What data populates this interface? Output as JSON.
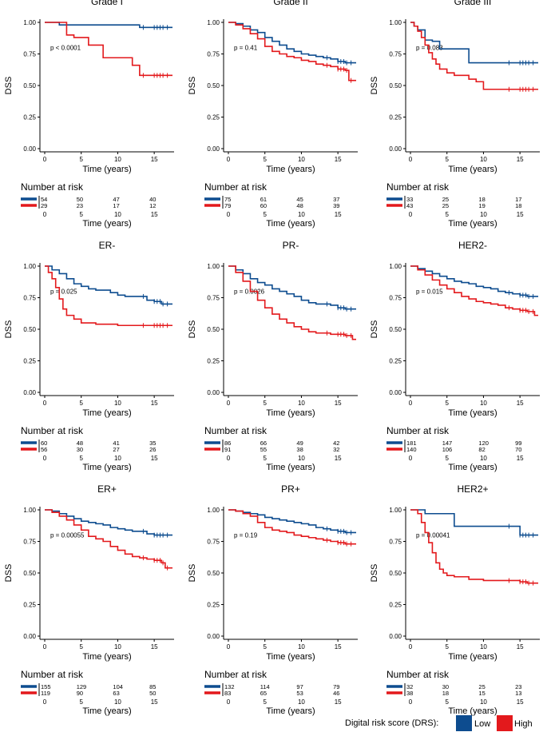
{
  "colors": {
    "low": "#0d4c8f",
    "high": "#e3191c"
  },
  "common": {
    "y_axis_label": "DSS",
    "x_axis_label": "Time (years)",
    "risk_table_title": "Number at risk",
    "y_ticks": [
      "0.00",
      "0.25",
      "0.50",
      "0.75",
      "1.00"
    ],
    "x_ticks": [
      "0",
      "5",
      "10",
      "15"
    ]
  },
  "legend": {
    "title": "Digital risk score (DRS):",
    "low_label": "Low",
    "high_label": "High"
  },
  "chart_data": [
    {
      "type": "line",
      "title": "Grade I",
      "pvalue": "p < 0.0001",
      "xlim": [
        0,
        17.5
      ],
      "ylim": [
        0,
        1
      ],
      "series": [
        {
          "name": "Low",
          "x": [
            0,
            1,
            2,
            3,
            4,
            5,
            7,
            9,
            10,
            12,
            13,
            14,
            15,
            17.5
          ],
          "y": [
            1,
            1,
            0.98,
            0.98,
            0.98,
            0.98,
            0.98,
            0.98,
            0.98,
            0.98,
            0.96,
            0.96,
            0.96,
            0.96
          ]
        },
        {
          "name": "High",
          "x": [
            0,
            1.5,
            3,
            4,
            5,
            6,
            7,
            8,
            10.5,
            12,
            13,
            15,
            17.5
          ],
          "y": [
            1,
            1,
            0.9,
            0.88,
            0.88,
            0.82,
            0.82,
            0.72,
            0.72,
            0.66,
            0.58,
            0.58,
            0.58
          ]
        }
      ],
      "risk": {
        "low": [
          "54",
          "50",
          "47",
          "40"
        ],
        "high": [
          "29",
          "23",
          "17",
          "12"
        ]
      }
    },
    {
      "type": "line",
      "title": "Grade II",
      "pvalue": "p = 0.41",
      "xlim": [
        0,
        17.5
      ],
      "ylim": [
        0,
        1
      ],
      "series": [
        {
          "name": "Low",
          "x": [
            0,
            1,
            2,
            3,
            4,
            5,
            6,
            7,
            8,
            9,
            10,
            11,
            12,
            13,
            14,
            15,
            16,
            17.5
          ],
          "y": [
            1,
            0.99,
            0.97,
            0.94,
            0.92,
            0.88,
            0.85,
            0.82,
            0.79,
            0.77,
            0.75,
            0.74,
            0.73,
            0.72,
            0.71,
            0.69,
            0.68,
            0.68
          ]
        },
        {
          "name": "High",
          "x": [
            0,
            1,
            2,
            3,
            4,
            5,
            6,
            7,
            8,
            9,
            10,
            11,
            12,
            13,
            14,
            15,
            16,
            16.5,
            17.5
          ],
          "y": [
            1,
            0.98,
            0.95,
            0.91,
            0.87,
            0.81,
            0.77,
            0.75,
            0.73,
            0.72,
            0.7,
            0.69,
            0.67,
            0.66,
            0.65,
            0.63,
            0.62,
            0.54,
            0.54
          ]
        }
      ],
      "risk": {
        "low": [
          "75",
          "61",
          "45",
          "37"
        ],
        "high": [
          "79",
          "60",
          "48",
          "39"
        ]
      }
    },
    {
      "type": "line",
      "title": "Grade III",
      "pvalue": "p = 0.083",
      "xlim": [
        0,
        17.5
      ],
      "ylim": [
        0,
        1
      ],
      "series": [
        {
          "name": "Low",
          "x": [
            0,
            0.5,
            1,
            2,
            3,
            4,
            5,
            6,
            7,
            8,
            10,
            12,
            15,
            17.5
          ],
          "y": [
            1,
            0.97,
            0.94,
            0.86,
            0.85,
            0.79,
            0.79,
            0.79,
            0.79,
            0.68,
            0.68,
            0.68,
            0.68,
            0.68
          ]
        },
        {
          "name": "High",
          "x": [
            0,
            0.5,
            1,
            1.5,
            2,
            2.5,
            3,
            3.5,
            4,
            5,
            6,
            7,
            8,
            9,
            10,
            12,
            15,
            17.5
          ],
          "y": [
            1,
            0.97,
            0.93,
            0.88,
            0.82,
            0.76,
            0.71,
            0.67,
            0.63,
            0.6,
            0.58,
            0.58,
            0.55,
            0.53,
            0.47,
            0.47,
            0.47,
            0.47
          ]
        }
      ],
      "risk": {
        "low": [
          "33",
          "25",
          "18",
          "17"
        ],
        "high": [
          "43",
          "25",
          "19",
          "18"
        ]
      }
    },
    {
      "type": "line",
      "title": "ER-",
      "pvalue": "p = 0.025",
      "xlim": [
        0,
        17.5
      ],
      "ylim": [
        0,
        1
      ],
      "series": [
        {
          "name": "Low",
          "x": [
            0,
            1,
            2,
            3,
            4,
            5,
            6,
            7,
            8,
            9,
            10,
            11,
            12,
            13,
            14,
            15,
            16,
            17.5
          ],
          "y": [
            1,
            0.97,
            0.94,
            0.9,
            0.86,
            0.84,
            0.82,
            0.81,
            0.81,
            0.79,
            0.77,
            0.76,
            0.76,
            0.76,
            0.73,
            0.72,
            0.7,
            0.7
          ]
        },
        {
          "name": "High",
          "x": [
            0,
            0.5,
            1,
            1.5,
            2,
            2.5,
            3,
            4,
            5,
            7,
            10,
            15,
            17.5
          ],
          "y": [
            1,
            0.95,
            0.9,
            0.83,
            0.74,
            0.66,
            0.61,
            0.58,
            0.55,
            0.54,
            0.53,
            0.53,
            0.53
          ]
        }
      ],
      "risk": {
        "low": [
          "60",
          "48",
          "41",
          "35"
        ],
        "high": [
          "56",
          "30",
          "27",
          "26"
        ]
      }
    },
    {
      "type": "line",
      "title": "PR-",
      "pvalue": "p = 0.0026",
      "xlim": [
        0,
        17.5
      ],
      "ylim": [
        0,
        1
      ],
      "series": [
        {
          "name": "Low",
          "x": [
            0,
            1,
            2,
            3,
            4,
            5,
            6,
            7,
            8,
            9,
            10,
            11,
            12,
            13,
            14,
            15,
            16,
            17.5
          ],
          "y": [
            1,
            0.97,
            0.94,
            0.9,
            0.87,
            0.85,
            0.82,
            0.8,
            0.78,
            0.76,
            0.73,
            0.71,
            0.7,
            0.7,
            0.69,
            0.67,
            0.66,
            0.66
          ]
        },
        {
          "name": "High",
          "x": [
            0,
            1,
            2,
            3,
            4,
            5,
            6,
            7,
            8,
            9,
            10,
            11,
            12,
            13,
            14,
            15,
            16,
            17,
            17.5
          ],
          "y": [
            1,
            0.95,
            0.88,
            0.8,
            0.73,
            0.67,
            0.62,
            0.58,
            0.55,
            0.52,
            0.5,
            0.48,
            0.47,
            0.47,
            0.46,
            0.46,
            0.45,
            0.42,
            0.42
          ]
        }
      ],
      "risk": {
        "low": [
          "86",
          "66",
          "49",
          "42"
        ],
        "high": [
          "91",
          "55",
          "38",
          "32"
        ]
      }
    },
    {
      "type": "line",
      "title": "HER2-",
      "pvalue": "p = 0.015",
      "xlim": [
        0,
        17.5
      ],
      "ylim": [
        0,
        1
      ],
      "series": [
        {
          "name": "Low",
          "x": [
            0,
            1,
            2,
            3,
            4,
            5,
            6,
            7,
            8,
            9,
            10,
            11,
            12,
            13,
            14,
            15,
            16,
            17.5
          ],
          "y": [
            1,
            0.98,
            0.96,
            0.94,
            0.92,
            0.9,
            0.88,
            0.87,
            0.86,
            0.84,
            0.83,
            0.82,
            0.8,
            0.79,
            0.78,
            0.77,
            0.76,
            0.76
          ]
        },
        {
          "name": "High",
          "x": [
            0,
            1,
            2,
            3,
            4,
            5,
            6,
            7,
            8,
            9,
            10,
            11,
            12,
            13,
            14,
            15,
            16,
            17,
            17.5
          ],
          "y": [
            1,
            0.97,
            0.93,
            0.89,
            0.85,
            0.82,
            0.79,
            0.76,
            0.74,
            0.72,
            0.71,
            0.7,
            0.69,
            0.67,
            0.66,
            0.65,
            0.64,
            0.61,
            0.61
          ]
        }
      ],
      "risk": {
        "low": [
          "181",
          "147",
          "120",
          "99"
        ],
        "high": [
          "140",
          "106",
          "82",
          "70"
        ]
      }
    },
    {
      "type": "line",
      "title": "ER+",
      "pvalue": "p = 0.00055",
      "xlim": [
        0,
        17.5
      ],
      "ylim": [
        0,
        1
      ],
      "series": [
        {
          "name": "Low",
          "x": [
            0,
            1,
            2,
            3,
            4,
            5,
            6,
            7,
            8,
            9,
            10,
            11,
            12,
            13,
            14,
            15,
            16,
            17.5
          ],
          "y": [
            1,
            0.99,
            0.97,
            0.95,
            0.93,
            0.91,
            0.9,
            0.89,
            0.88,
            0.86,
            0.85,
            0.84,
            0.83,
            0.83,
            0.81,
            0.8,
            0.8,
            0.8
          ]
        },
        {
          "name": "High",
          "x": [
            0,
            1,
            2,
            3,
            4,
            5,
            6,
            7,
            8,
            9,
            10,
            11,
            12,
            13,
            14,
            15,
            16,
            16.5,
            17.5
          ],
          "y": [
            1,
            0.98,
            0.95,
            0.92,
            0.88,
            0.84,
            0.79,
            0.77,
            0.75,
            0.71,
            0.68,
            0.65,
            0.63,
            0.62,
            0.61,
            0.6,
            0.58,
            0.54,
            0.54
          ]
        }
      ],
      "risk": {
        "low": [
          "155",
          "129",
          "104",
          "85"
        ],
        "high": [
          "119",
          "90",
          "63",
          "50"
        ]
      }
    },
    {
      "type": "line",
      "title": "PR+",
      "pvalue": "p = 0.19",
      "xlim": [
        0,
        17.5
      ],
      "ylim": [
        0,
        1
      ],
      "series": [
        {
          "name": "Low",
          "x": [
            0,
            1,
            2,
            3,
            4,
            5,
            6,
            7,
            8,
            9,
            10,
            11,
            12,
            13,
            14,
            15,
            16,
            17.5
          ],
          "y": [
            1,
            0.99,
            0.98,
            0.97,
            0.96,
            0.94,
            0.93,
            0.92,
            0.91,
            0.9,
            0.89,
            0.88,
            0.86,
            0.85,
            0.84,
            0.83,
            0.82,
            0.82
          ]
        },
        {
          "name": "High",
          "x": [
            0,
            1,
            2,
            3,
            4,
            5,
            6,
            7,
            8,
            9,
            10,
            11,
            12,
            13,
            14,
            15,
            16,
            17.5
          ],
          "y": [
            1,
            0.99,
            0.97,
            0.95,
            0.9,
            0.86,
            0.84,
            0.83,
            0.82,
            0.8,
            0.79,
            0.78,
            0.77,
            0.76,
            0.75,
            0.74,
            0.73,
            0.73
          ]
        }
      ],
      "risk": {
        "low": [
          "132",
          "114",
          "97",
          "79"
        ],
        "high": [
          "83",
          "65",
          "53",
          "46"
        ]
      }
    },
    {
      "type": "line",
      "title": "HER2+",
      "pvalue": "p = 0.00041",
      "xlim": [
        0,
        17.5
      ],
      "ylim": [
        0,
        1
      ],
      "series": [
        {
          "name": "Low",
          "x": [
            0,
            2,
            5,
            6,
            8,
            10,
            12,
            14.5,
            15,
            15.5,
            17.5
          ],
          "y": [
            1,
            0.97,
            0.97,
            0.87,
            0.87,
            0.87,
            0.87,
            0.87,
            0.8,
            0.8,
            0.8
          ]
        },
        {
          "name": "High",
          "x": [
            0,
            1,
            1.5,
            2,
            2.5,
            3,
            3.5,
            4,
            4.5,
            5,
            6,
            7,
            8,
            10,
            12,
            15,
            16,
            17.5
          ],
          "y": [
            1,
            0.97,
            0.9,
            0.82,
            0.74,
            0.66,
            0.58,
            0.53,
            0.5,
            0.48,
            0.47,
            0.47,
            0.45,
            0.44,
            0.44,
            0.43,
            0.42,
            0.42
          ]
        }
      ],
      "risk": {
        "low": [
          "32",
          "30",
          "25",
          "23"
        ],
        "high": [
          "38",
          "18",
          "15",
          "13"
        ]
      }
    }
  ]
}
